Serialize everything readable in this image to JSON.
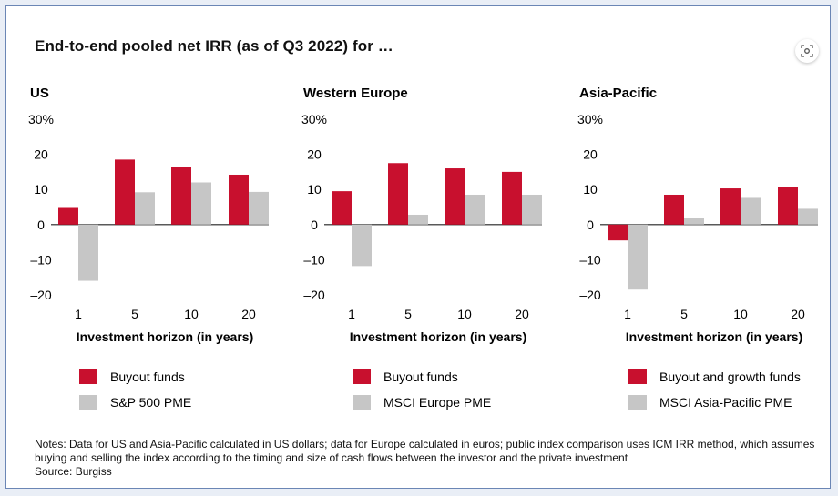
{
  "title": "End-to-end pooled net IRR (as of Q3 2022) for …",
  "colors": {
    "primary": "#c8102e",
    "secondary": "#c6c6c6"
  },
  "icons": {
    "lens": "lens-search-icon"
  },
  "chart_data": [
    {
      "type": "bar",
      "title": "US",
      "xlabel": "Investment horizon (in years)",
      "ylabel": "",
      "categories": [
        "1",
        "5",
        "10",
        "20"
      ],
      "yticks": [
        "30%",
        "20",
        "10",
        "0",
        "–10",
        "–20"
      ],
      "ylim": [
        -20,
        30
      ],
      "series": [
        {
          "name": "Buyout funds",
          "values": [
            5,
            18.5,
            16.5,
            14.2
          ]
        },
        {
          "name": "S&P 500 PME",
          "values": [
            -16,
            9.2,
            12,
            9.3
          ]
        }
      ]
    },
    {
      "type": "bar",
      "title": "Western Europe",
      "xlabel": "Investment horizon (in years)",
      "ylabel": "",
      "categories": [
        "1",
        "5",
        "10",
        "20"
      ],
      "yticks": [
        "30%",
        "20",
        "10",
        "0",
        "–10",
        "–20"
      ],
      "ylim": [
        -20,
        30
      ],
      "series": [
        {
          "name": "Buyout funds",
          "values": [
            9.5,
            17.5,
            16,
            15
          ]
        },
        {
          "name": "MSCI Europe PME",
          "values": [
            -11.8,
            2.8,
            8.5,
            8.5
          ]
        }
      ]
    },
    {
      "type": "bar",
      "title": "Asia-Pacific",
      "xlabel": "Investment horizon (in years)",
      "ylabel": "",
      "categories": [
        "1",
        "5",
        "10",
        "20"
      ],
      "yticks": [
        "30%",
        "20",
        "10",
        "0",
        "–10",
        "–20"
      ],
      "ylim": [
        -20,
        30
      ],
      "series": [
        {
          "name": "Buyout and growth funds",
          "values": [
            -4.5,
            8.5,
            10.3,
            10.8
          ]
        },
        {
          "name": "MSCI Asia-Pacific PME",
          "values": [
            -18.5,
            1.8,
            7.6,
            4.5
          ]
        }
      ]
    }
  ],
  "notes": {
    "line1": "Notes: Data for US and Asia-Pacific calculated in US dollars; data for Europe calculated in euros; public index comparison uses ICM IRR method, which assumes buying and selling the index according to the timing and size of cash flows between the investor and the private investment",
    "line2": "Source: Burgiss"
  }
}
